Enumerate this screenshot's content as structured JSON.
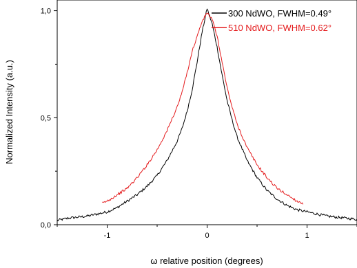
{
  "chart_data": {
    "type": "line",
    "xlabel": "ω relative position (degrees)",
    "ylabel": "Normalized Intensity (a.u.)",
    "xlim": [
      -1.5,
      1.5
    ],
    "ylim": [
      0.0,
      1.05
    ],
    "x_ticks": [
      -1,
      0,
      1
    ],
    "x_tick_labels": [
      "-1",
      "0",
      "1"
    ],
    "y_ticks": [
      0.0,
      0.5,
      1.0
    ],
    "y_tick_labels": [
      "0,0",
      "0,5",
      "1,0"
    ],
    "grid": false,
    "legend_position": "top-right",
    "series": [
      {
        "name": "300 NdWO, FWHM=0.49°",
        "color": "#000000",
        "x": [
          -1.5,
          -1.4,
          -1.3,
          -1.2,
          -1.1,
          -1.0,
          -0.9,
          -0.8,
          -0.7,
          -0.6,
          -0.5,
          -0.4,
          -0.3,
          -0.25,
          -0.2,
          -0.15,
          -0.1,
          -0.05,
          0.0,
          0.05,
          0.1,
          0.15,
          0.2,
          0.25,
          0.3,
          0.4,
          0.5,
          0.6,
          0.7,
          0.8,
          0.9,
          1.0,
          1.1,
          1.2,
          1.3,
          1.4,
          1.5
        ],
        "y": [
          0.02,
          0.03,
          0.035,
          0.04,
          0.05,
          0.06,
          0.08,
          0.11,
          0.14,
          0.18,
          0.23,
          0.3,
          0.39,
          0.45,
          0.53,
          0.63,
          0.76,
          0.9,
          1.01,
          0.94,
          0.83,
          0.7,
          0.58,
          0.49,
          0.41,
          0.3,
          0.22,
          0.16,
          0.12,
          0.09,
          0.07,
          0.06,
          0.05,
          0.04,
          0.035,
          0.03,
          0.025
        ]
      },
      {
        "name": "510 NdWO, FWHM=0.62°",
        "color": "#e41a1c",
        "x": [
          -1.05,
          -1.0,
          -0.9,
          -0.8,
          -0.7,
          -0.6,
          -0.5,
          -0.4,
          -0.3,
          -0.25,
          -0.2,
          -0.15,
          -0.1,
          -0.05,
          0.0,
          0.05,
          0.1,
          0.15,
          0.2,
          0.25,
          0.3,
          0.4,
          0.5,
          0.6,
          0.7,
          0.8,
          0.9,
          0.96
        ],
        "y": [
          0.1,
          0.11,
          0.14,
          0.17,
          0.22,
          0.28,
          0.35,
          0.44,
          0.55,
          0.62,
          0.71,
          0.81,
          0.88,
          0.95,
          0.99,
          0.96,
          0.88,
          0.76,
          0.64,
          0.55,
          0.47,
          0.36,
          0.28,
          0.22,
          0.17,
          0.14,
          0.11,
          0.1
        ]
      }
    ]
  }
}
